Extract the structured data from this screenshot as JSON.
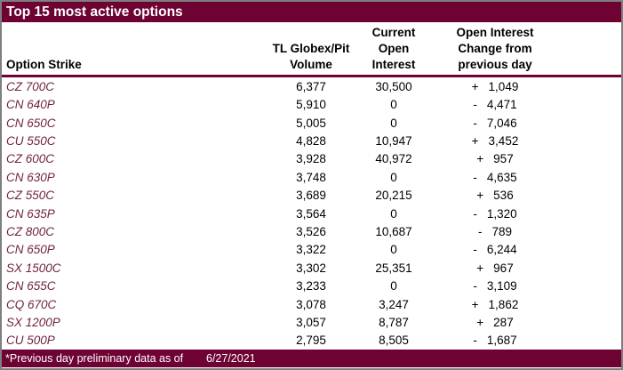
{
  "title": "Top 15 most active options",
  "table": {
    "column_headers": {
      "strike": [
        "Option Strike"
      ],
      "volume": [
        "TL Globex/Pit",
        "Volume"
      ],
      "open_interest": [
        "Current",
        "Open",
        "Interest"
      ],
      "change": [
        "Open Interest",
        "Change from",
        "previous day"
      ]
    },
    "rows": [
      {
        "strike": "CZ 700C",
        "volume": "6,377",
        "open_interest": "30,500",
        "change_sign": "+",
        "change_value": "1,049"
      },
      {
        "strike": "CN 640P",
        "volume": "5,910",
        "open_interest": "0",
        "change_sign": "-",
        "change_value": "4,471"
      },
      {
        "strike": "CN 650C",
        "volume": "5,005",
        "open_interest": "0",
        "change_sign": "-",
        "change_value": "7,046"
      },
      {
        "strike": "CU 550C",
        "volume": "4,828",
        "open_interest": "10,947",
        "change_sign": "+",
        "change_value": "3,452"
      },
      {
        "strike": "CZ 600C",
        "volume": "3,928",
        "open_interest": "40,972",
        "change_sign": "+",
        "change_value": "957"
      },
      {
        "strike": "CN 630P",
        "volume": "3,748",
        "open_interest": "0",
        "change_sign": "-",
        "change_value": "4,635"
      },
      {
        "strike": "CZ 550C",
        "volume": "3,689",
        "open_interest": "20,215",
        "change_sign": "+",
        "change_value": "536"
      },
      {
        "strike": "CN 635P",
        "volume": "3,564",
        "open_interest": "0",
        "change_sign": "-",
        "change_value": "1,320"
      },
      {
        "strike": "CZ 800C",
        "volume": "3,526",
        "open_interest": "10,687",
        "change_sign": "-",
        "change_value": "789"
      },
      {
        "strike": "CN 650P",
        "volume": "3,322",
        "open_interest": "0",
        "change_sign": "-",
        "change_value": "6,244"
      },
      {
        "strike": "SX 1500C",
        "volume": "3,302",
        "open_interest": "25,351",
        "change_sign": "+",
        "change_value": "967"
      },
      {
        "strike": "CN 655C",
        "volume": "3,233",
        "open_interest": "0",
        "change_sign": "-",
        "change_value": "3,109"
      },
      {
        "strike": "CQ 670C",
        "volume": "3,078",
        "open_interest": "3,247",
        "change_sign": "+",
        "change_value": "1,862"
      },
      {
        "strike": "SX 1200P",
        "volume": "3,057",
        "open_interest": "8,787",
        "change_sign": "+",
        "change_value": "287"
      },
      {
        "strike": "CU 500P",
        "volume": "2,795",
        "open_interest": "8,505",
        "change_sign": "-",
        "change_value": "1,687"
      }
    ]
  },
  "footer": {
    "note": "*Previous day preliminary data as of",
    "date": "6/27/2021"
  },
  "colors": {
    "maroon": "#6e0333",
    "strike_text": "#712240",
    "border_gray": "#7f7f7f",
    "header_text": "#000000",
    "data_text": "#000000",
    "bar_text": "#ffffff",
    "background": "#ffffff"
  },
  "chart_data": {
    "type": "table",
    "title": "Top 15 most active options",
    "columns": [
      "Option Strike",
      "TL Globex/Pit Volume",
      "Current Open Interest",
      "Open Interest Change from previous day"
    ],
    "rows": [
      [
        "CZ 700C",
        6377,
        30500,
        1049
      ],
      [
        "CN 640P",
        5910,
        0,
        -4471
      ],
      [
        "CN 650C",
        5005,
        0,
        -7046
      ],
      [
        "CU 550C",
        4828,
        10947,
        3452
      ],
      [
        "CZ 600C",
        3928,
        40972,
        957
      ],
      [
        "CN 630P",
        3748,
        0,
        -4635
      ],
      [
        "CZ 550C",
        3689,
        20215,
        536
      ],
      [
        "CN 635P",
        3564,
        0,
        -1320
      ],
      [
        "CZ 800C",
        3526,
        10687,
        -789
      ],
      [
        "CN 650P",
        3322,
        0,
        -6244
      ],
      [
        "SX 1500C",
        3302,
        25351,
        967
      ],
      [
        "CN 655C",
        3233,
        0,
        -3109
      ],
      [
        "CQ 670C",
        3078,
        3247,
        1862
      ],
      [
        "SX 1200P",
        3057,
        8787,
        287
      ],
      [
        "CU 500P",
        2795,
        8505,
        -1687
      ]
    ],
    "footnote": "*Previous day preliminary data as of 6/27/2021"
  }
}
